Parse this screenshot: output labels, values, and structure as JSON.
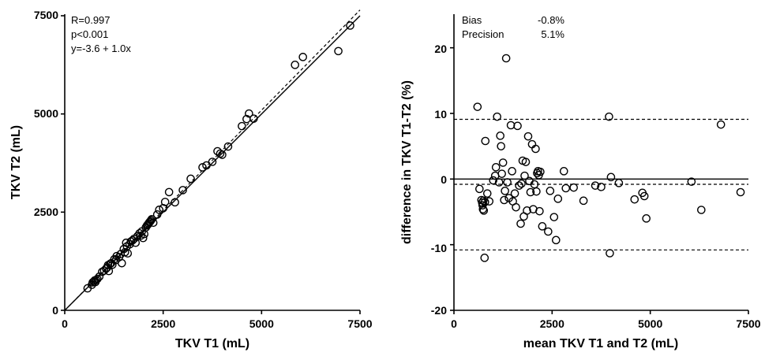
{
  "chart_data": [
    {
      "type": "scatter",
      "title": "",
      "xlabel": "TKV T1 (mL)",
      "ylabel": "TKV T2 (mL)",
      "xlim": [
        0,
        7500
      ],
      "ylim": [
        0,
        7500
      ],
      "xticks": [
        "0",
        "2500",
        "5000",
        "7500"
      ],
      "yticks": [
        "0",
        "2500",
        "5000",
        "7500"
      ],
      "annotations": [
        "R=0.997",
        "p<0.001",
        "y=-3.6 + 1.0x"
      ],
      "reference_lines": [
        {
          "style": "solid",
          "intercept": 0,
          "slope": 1.0
        },
        {
          "style": "dashed",
          "intercept": -3.6,
          "slope": 1.02
        }
      ],
      "points": [
        [
          580,
          560
        ],
        [
          690,
          650
        ],
        [
          710,
          710
        ],
        [
          740,
          730
        ],
        [
          760,
          760
        ],
        [
          780,
          720
        ],
        [
          800,
          770
        ],
        [
          830,
          800
        ],
        [
          880,
          860
        ],
        [
          950,
          980
        ],
        [
          1000,
          1010
        ],
        [
          1050,
          1060
        ],
        [
          1080,
          1090
        ],
        [
          1100,
          1150
        ],
        [
          1120,
          1000
        ],
        [
          1150,
          1180
        ],
        [
          1180,
          1200
        ],
        [
          1210,
          1160
        ],
        [
          1260,
          1300
        ],
        [
          1300,
          1280
        ],
        [
          1320,
          1380
        ],
        [
          1380,
          1350
        ],
        [
          1420,
          1430
        ],
        [
          1450,
          1200
        ],
        [
          1500,
          1560
        ],
        [
          1530,
          1480
        ],
        [
          1560,
          1720
        ],
        [
          1580,
          1630
        ],
        [
          1600,
          1450
        ],
        [
          1650,
          1680
        ],
        [
          1680,
          1750
        ],
        [
          1720,
          1780
        ],
        [
          1760,
          1820
        ],
        [
          1800,
          1720
        ],
        [
          1850,
          1890
        ],
        [
          1900,
          1960
        ],
        [
          1930,
          1900
        ],
        [
          1960,
          2010
        ],
        [
          1990,
          1840
        ],
        [
          2020,
          1940
        ],
        [
          2060,
          2110
        ],
        [
          2090,
          2160
        ],
        [
          2110,
          2180
        ],
        [
          2130,
          2210
        ],
        [
          2150,
          2240
        ],
        [
          2170,
          2260
        ],
        [
          2190,
          2290
        ],
        [
          2210,
          2320
        ],
        [
          2250,
          2230
        ],
        [
          2350,
          2440
        ],
        [
          2400,
          2560
        ],
        [
          2500,
          2600
        ],
        [
          2550,
          2760
        ],
        [
          2650,
          3010
        ],
        [
          2800,
          2750
        ],
        [
          3000,
          3060
        ],
        [
          3200,
          3350
        ],
        [
          3500,
          3640
        ],
        [
          3600,
          3690
        ],
        [
          3750,
          3780
        ],
        [
          3880,
          4050
        ],
        [
          3950,
          3990
        ],
        [
          4000,
          3960
        ],
        [
          4150,
          4170
        ],
        [
          4500,
          4690
        ],
        [
          4620,
          4870
        ],
        [
          4680,
          5010
        ],
        [
          4800,
          4880
        ],
        [
          5850,
          6250
        ],
        [
          6050,
          6450
        ],
        [
          6950,
          6600
        ],
        [
          7250,
          7250
        ]
      ]
    },
    {
      "type": "scatter",
      "title": "",
      "xlabel": "mean TKV T1 and T2 (mL)",
      "ylabel": "difference in TKV T1-T2 (%)",
      "xlim": [
        0,
        7500
      ],
      "ylim": [
        -20,
        25
      ],
      "xticks": [
        "0",
        "2500",
        "5000",
        "7500"
      ],
      "yticks": [
        "-20",
        "-10",
        "0",
        "10",
        "20"
      ],
      "annotations": [
        {
          "label": "Bias",
          "value": "-0.8%"
        },
        {
          "label": "Precision",
          "value": "5.1%"
        }
      ],
      "reference_lines": [
        {
          "style": "solid",
          "y": 0
        },
        {
          "style": "dashed",
          "y": -0.8
        },
        {
          "style": "dashed",
          "y": 9.1
        },
        {
          "style": "dashed",
          "y": -10.8
        }
      ],
      "points": [
        [
          600,
          11.0
        ],
        [
          650,
          -1.5
        ],
        [
          700,
          -3.2
        ],
        [
          720,
          -3.6
        ],
        [
          730,
          -4.0
        ],
        [
          740,
          -4.6
        ],
        [
          750,
          -3.3
        ],
        [
          760,
          -4.8
        ],
        [
          780,
          -12.0
        ],
        [
          790,
          -3.5
        ],
        [
          800,
          5.8
        ],
        [
          850,
          -2.2
        ],
        [
          900,
          -3.4
        ],
        [
          1000,
          -0.2
        ],
        [
          1050,
          0.5
        ],
        [
          1070,
          1.8
        ],
        [
          1100,
          9.5
        ],
        [
          1150,
          -0.5
        ],
        [
          1180,
          6.6
        ],
        [
          1200,
          5.0
        ],
        [
          1220,
          0.8
        ],
        [
          1250,
          2.5
        ],
        [
          1280,
          -3.2
        ],
        [
          1300,
          -1.8
        ],
        [
          1330,
          18.4
        ],
        [
          1360,
          -0.5
        ],
        [
          1400,
          -2.9
        ],
        [
          1450,
          8.2
        ],
        [
          1480,
          1.2
        ],
        [
          1500,
          -3.4
        ],
        [
          1550,
          -2.2
        ],
        [
          1580,
          -4.3
        ],
        [
          1620,
          8.1
        ],
        [
          1660,
          -1.0
        ],
        [
          1700,
          -6.8
        ],
        [
          1720,
          -0.7
        ],
        [
          1750,
          2.8
        ],
        [
          1780,
          -5.7
        ],
        [
          1800,
          0.5
        ],
        [
          1830,
          2.6
        ],
        [
          1860,
          -4.8
        ],
        [
          1890,
          6.5
        ],
        [
          1920,
          -0.3
        ],
        [
          1950,
          -2.0
        ],
        [
          1990,
          5.3
        ],
        [
          2020,
          -4.6
        ],
        [
          2050,
          -0.8
        ],
        [
          2080,
          4.6
        ],
        [
          2100,
          -1.9
        ],
        [
          2120,
          0.9
        ],
        [
          2140,
          1.2
        ],
        [
          2160,
          0.6
        ],
        [
          2180,
          -4.9
        ],
        [
          2200,
          1.1
        ],
        [
          2250,
          -7.2
        ],
        [
          2400,
          -8.0
        ],
        [
          2450,
          -1.8
        ],
        [
          2550,
          -5.8
        ],
        [
          2600,
          -9.3
        ],
        [
          2650,
          -3.0
        ],
        [
          2800,
          1.2
        ],
        [
          2850,
          -1.4
        ],
        [
          3050,
          -1.3
        ],
        [
          3300,
          -3.3
        ],
        [
          3600,
          -1.0
        ],
        [
          3750,
          -1.2
        ],
        [
          3950,
          9.5
        ],
        [
          3970,
          -11.3
        ],
        [
          4000,
          0.3
        ],
        [
          4200,
          -0.6
        ],
        [
          4600,
          -3.1
        ],
        [
          4800,
          -2.1
        ],
        [
          4850,
          -2.6
        ],
        [
          4900,
          -6.0
        ],
        [
          6050,
          -0.4
        ],
        [
          6300,
          -4.7
        ],
        [
          6800,
          8.3
        ],
        [
          7300,
          -2.0
        ]
      ]
    }
  ]
}
